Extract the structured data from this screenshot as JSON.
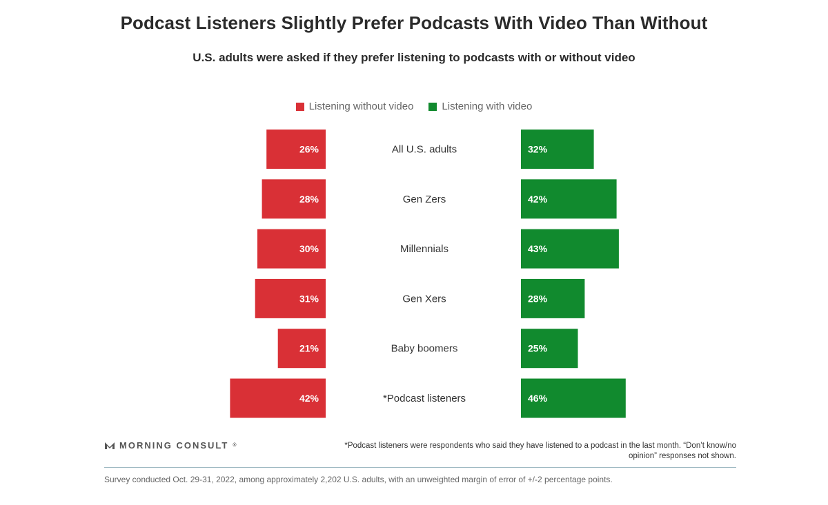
{
  "header": {
    "title": "Podcast Listeners Slightly Prefer Podcasts With Video Than Without",
    "subtitle": "U.S. adults were asked if they prefer listening to podcasts with or without video"
  },
  "legend": {
    "without_label": "Listening without video",
    "with_label": "Listening with video"
  },
  "colors": {
    "without": "#d93036",
    "with": "#118a2e"
  },
  "chart_data": {
    "type": "bar",
    "orientation": "horizontal-diverging",
    "title": "Podcast Listeners Slightly Prefer Podcasts With Video Than Without",
    "subtitle": "U.S. adults were asked if they prefer listening to podcasts with or without video",
    "categories": [
      "All U.S. adults",
      "Gen Zers",
      "Millennials",
      "Gen Xers",
      "Baby boomers",
      "*Podcast listeners"
    ],
    "series": [
      {
        "name": "Listening without video",
        "values": [
          26,
          28,
          30,
          31,
          21,
          42
        ],
        "labels": [
          "26%",
          "28%",
          "30%",
          "31%",
          "21%",
          "42%"
        ]
      },
      {
        "name": "Listening with video",
        "values": [
          32,
          42,
          43,
          28,
          25,
          46
        ],
        "labels": [
          "32%",
          "42%",
          "43%",
          "28%",
          "25%",
          "46%"
        ]
      }
    ],
    "unit": "%",
    "legend_position": "top-center"
  },
  "footer": {
    "logo_text": "MORNING CONSULT",
    "logo_mark": "®",
    "footnote": "*Podcast listeners were respondents who said they have listened to a podcast in the last month. “Don’t know/no opinion” responses not shown.",
    "source": "Survey conducted Oct. 29-31, 2022, among approximately 2,202 U.S. adults, with an unweighted margin of error of +/-2 percentage points."
  }
}
